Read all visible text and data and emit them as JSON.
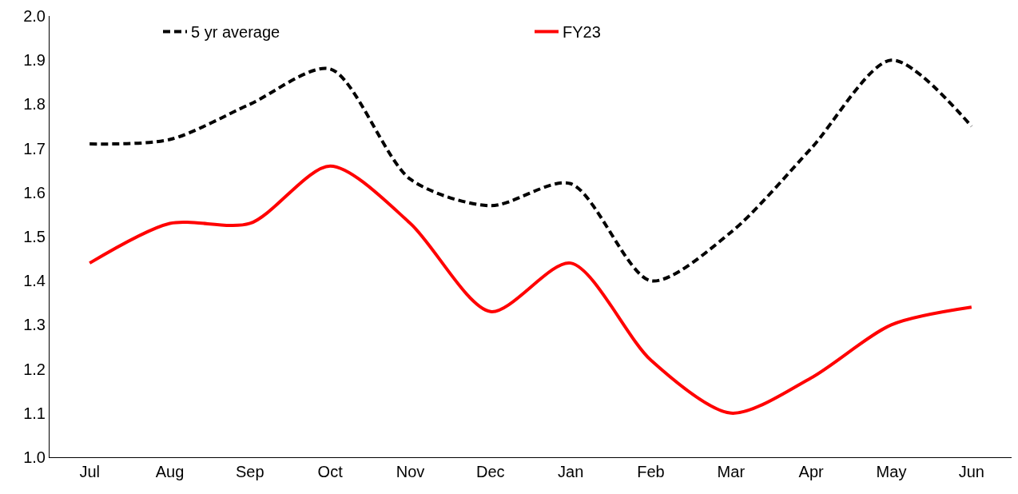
{
  "chart_data": {
    "type": "line",
    "categories": [
      "Jul",
      "Aug",
      "Sep",
      "Oct",
      "Nov",
      "Dec",
      "Jan",
      "Feb",
      "Mar",
      "Apr",
      "May",
      "Jun"
    ],
    "series": [
      {
        "name": "5 yr average",
        "color": "#000000",
        "line_style": "dashed",
        "values": [
          1.71,
          1.72,
          1.8,
          1.88,
          1.63,
          1.57,
          1.62,
          1.4,
          1.51,
          1.7,
          1.9,
          1.75
        ]
      },
      {
        "name": "FY23",
        "color": "#ff0000",
        "line_style": "solid",
        "values": [
          1.44,
          1.53,
          1.53,
          1.66,
          1.53,
          1.33,
          1.44,
          1.22,
          1.1,
          1.18,
          1.3,
          1.34
        ]
      }
    ],
    "ylim": [
      1.0,
      2.0
    ],
    "yticks": [
      {
        "value": 1.0,
        "label": "1.0"
      },
      1.1,
      1.2,
      1.3,
      1.4,
      1.5,
      1.6,
      1.7,
      1.8,
      1.9,
      {
        "value": 2.0,
        "label": "2.0"
      }
    ],
    "legend": "top",
    "marker": "none"
  }
}
